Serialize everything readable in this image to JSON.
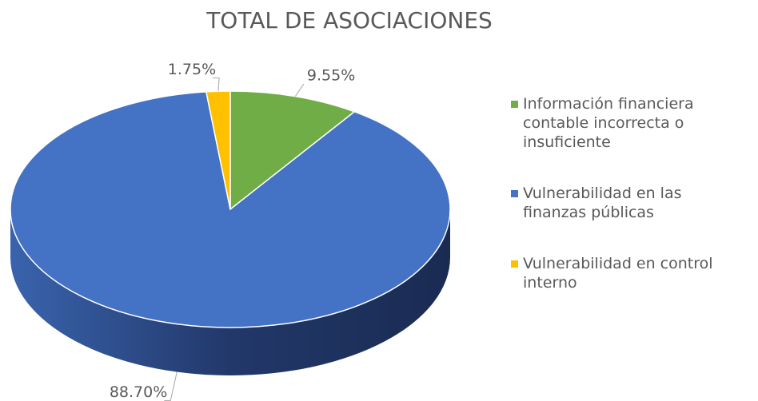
{
  "chart_data": {
    "type": "pie",
    "title": "TOTAL DE ASOCIACIONES",
    "categories": [
      "Información financiera contable incorrecta o insuficiente",
      "Vulnerabilidad en las finanzas públicas",
      "Vulnerabilidad en control interno"
    ],
    "values": [
      9.55,
      88.7,
      1.75
    ],
    "value_labels": [
      "9.55%",
      "88.70%",
      "1.75%"
    ],
    "colors": [
      "#70ad47",
      "#4472c4",
      "#ffc000"
    ],
    "legend": "right"
  }
}
